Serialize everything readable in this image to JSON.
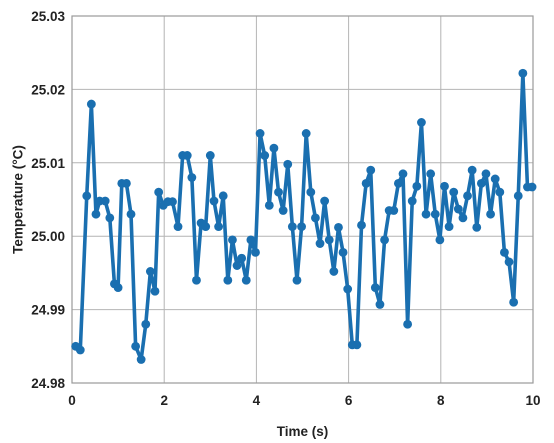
{
  "chart_data": {
    "type": "line",
    "title": "",
    "xlabel": "Time (s)",
    "ylabel": "Temperature (°C)",
    "xlim": [
      0,
      10
    ],
    "ylim": [
      24.98,
      25.03
    ],
    "x_ticks": [
      "0",
      "2",
      "4",
      "6",
      "8",
      "10"
    ],
    "y_ticks": [
      "24.98",
      "24.99",
      "25.00",
      "25.01",
      "25.02",
      "25.03"
    ],
    "grid": true,
    "legend": "none",
    "series_color": "#1a6fb0",
    "series": [
      {
        "x": [
          0.08,
          0.18,
          0.32,
          0.42,
          0.52,
          0.6,
          0.72,
          0.82,
          0.92,
          1.0,
          1.08,
          1.18,
          1.28,
          1.38,
          1.5,
          1.6,
          1.7,
          1.8,
          1.88,
          1.98,
          2.08,
          2.18,
          2.3,
          2.4,
          2.5,
          2.6,
          2.7,
          2.8,
          2.9,
          3.0,
          3.08,
          3.18,
          3.28,
          3.38,
          3.48,
          3.58,
          3.68,
          3.78,
          3.88,
          3.98,
          4.08,
          4.18,
          4.28,
          4.38,
          4.48,
          4.58,
          4.68,
          4.78,
          4.88,
          4.98,
          5.08,
          5.18,
          5.28,
          5.38,
          5.48,
          5.58,
          5.68,
          5.78,
          5.88,
          5.98,
          6.08,
          6.18,
          6.28,
          6.38,
          6.48,
          6.58,
          6.68,
          6.78,
          6.88,
          6.98,
          7.08,
          7.18,
          7.28,
          7.38,
          7.48,
          7.58,
          7.68,
          7.78,
          7.88,
          7.98,
          8.08,
          8.18,
          8.28,
          8.38,
          8.48,
          8.58,
          8.68,
          8.78,
          8.88,
          8.98,
          9.08,
          9.18,
          9.28,
          9.38,
          9.48,
          9.58,
          9.68,
          9.78,
          9.88,
          9.98
        ],
        "values": [
          24.985,
          24.9845,
          25.0055,
          25.018,
          25.003,
          25.0048,
          25.0048,
          25.0025,
          24.9935,
          24.993,
          25.0072,
          25.0072,
          25.003,
          24.985,
          24.9832,
          24.988,
          24.9952,
          24.9925,
          25.006,
          25.0042,
          25.0047,
          25.0047,
          25.0013,
          25.011,
          25.011,
          25.008,
          24.994,
          25.0018,
          25.0013,
          25.011,
          25.0048,
          25.0013,
          25.0055,
          24.994,
          24.9995,
          24.996,
          24.997,
          24.994,
          24.9995,
          24.9978,
          25.014,
          25.011,
          25.0042,
          25.012,
          25.006,
          25.0035,
          25.0098,
          25.0013,
          24.994,
          25.0013,
          25.014,
          25.006,
          25.0025,
          24.999,
          25.0048,
          24.9995,
          24.9952,
          25.0012,
          24.9978,
          24.9928,
          24.9852,
          24.9852,
          25.0015,
          25.0072,
          25.009,
          24.993,
          24.9907,
          24.9995,
          25.0035,
          25.0035,
          25.0072,
          25.0085,
          24.988,
          25.0048,
          25.0068,
          25.0155,
          25.003,
          25.0085,
          25.003,
          24.9995,
          25.0068,
          25.0013,
          25.006,
          25.0037,
          25.0025,
          25.0055,
          25.009,
          25.0012,
          25.0072,
          25.0085,
          25.003,
          25.0078,
          25.006,
          24.9978,
          24.9965,
          24.991,
          25.0055,
          25.0222,
          25.0067,
          25.0067
        ]
      }
    ]
  }
}
